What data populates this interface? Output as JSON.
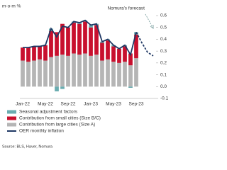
{
  "chart_data": {
    "type": "bar",
    "y_label": "m-o-m %",
    "source": "Source: BLS, Haver, Nomura",
    "categories": [
      "Jan-22",
      null,
      null,
      null,
      "May-22",
      null,
      null,
      null,
      "Sep-22",
      null,
      null,
      null,
      "Jan-23",
      null,
      null,
      null,
      "May-23",
      null,
      null,
      null,
      "Sep-23",
      null,
      null,
      null
    ],
    "series": [
      {
        "name": "Seasonal adjustment factors",
        "color": "#6aacb0",
        "kind": "bar",
        "values": [
          0.0,
          0.0,
          0.0,
          0.0,
          0.0,
          0.02,
          -0.04,
          -0.02,
          0.0,
          0.01,
          0.01,
          0.01,
          0.02,
          0.01,
          0.01,
          0.01,
          0.01,
          0.0,
          0.01,
          -0.01,
          0.02,
          null,
          null,
          null
        ]
      },
      {
        "name": "Contribution from small cities (Size B/C)",
        "color": "#c8102e",
        "kind": "bar",
        "values": [
          0.11,
          0.12,
          0.12,
          0.11,
          0.13,
          0.22,
          0.2,
          0.26,
          0.24,
          0.26,
          0.26,
          0.27,
          0.24,
          0.25,
          0.15,
          0.16,
          0.13,
          0.12,
          0.13,
          0.1,
          0.2,
          null,
          null,
          null
        ]
      },
      {
        "name": "Contribution from large cities (Size A)",
        "color": "#b5b5b5",
        "kind": "bar",
        "values": [
          0.22,
          0.21,
          0.22,
          0.23,
          0.22,
          0.25,
          0.26,
          0.27,
          0.26,
          0.28,
          0.27,
          0.28,
          0.26,
          0.27,
          0.22,
          0.23,
          0.21,
          0.2,
          0.21,
          0.18,
          0.24,
          null,
          null,
          null
        ]
      },
      {
        "name": "OER monthly inflation",
        "color": "#1f3864",
        "kind": "line",
        "values": [
          0.33,
          0.33,
          0.34,
          0.34,
          0.35,
          0.49,
          0.42,
          0.51,
          0.5,
          0.55,
          0.54,
          0.56,
          0.52,
          0.53,
          0.38,
          0.4,
          0.35,
          0.32,
          0.35,
          0.27,
          0.46,
          null,
          null,
          null
        ]
      },
      {
        "name": "Nomura's forecast",
        "color": "#1f3864",
        "kind": "line",
        "style": "dashed",
        "values": [
          null,
          null,
          null,
          null,
          null,
          null,
          null,
          null,
          null,
          null,
          null,
          null,
          null,
          null,
          null,
          null,
          null,
          null,
          null,
          null,
          0.46,
          0.37,
          0.29,
          0.26
        ]
      }
    ],
    "ylim": [
      -0.1,
      0.6
    ],
    "yticks": [
      {
        "value": -0.1,
        "label": "-0.1"
      },
      {
        "value": 0,
        "label": "0.0"
      },
      0.1,
      0.2,
      0.3,
      0.4,
      0.5,
      0.6
    ]
  }
}
